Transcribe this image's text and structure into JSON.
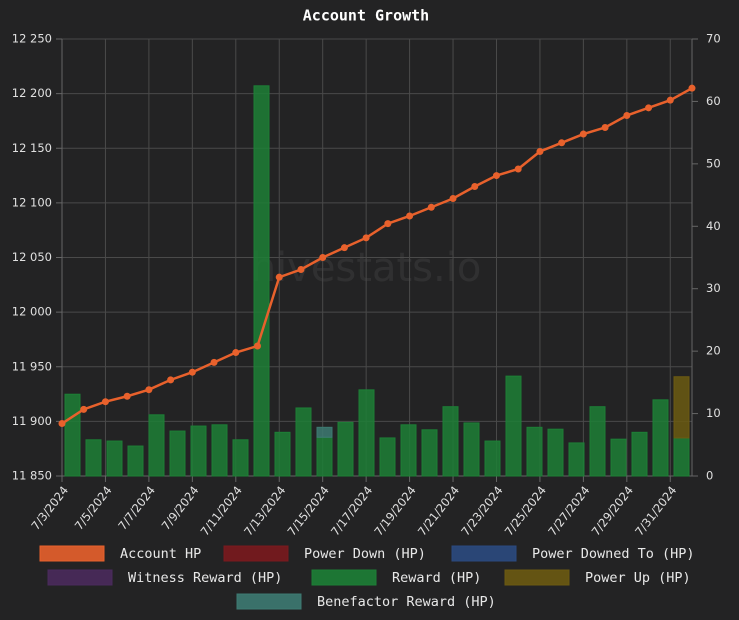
{
  "chart_data": {
    "type": "bar-line",
    "title": "Account Growth",
    "watermark": "hivestats.io",
    "categories": [
      "7/3/2024",
      null,
      "7/5/2024",
      null,
      "7/7/2024",
      null,
      "7/9/2024",
      null,
      "7/11/2024",
      null,
      "7/13/2024",
      null,
      "7/15/2024",
      null,
      "7/17/2024",
      null,
      "7/19/2024",
      null,
      "7/21/2024",
      null,
      "7/23/2024",
      null,
      "7/25/2024",
      null,
      "7/27/2024",
      null,
      "7/29/2024",
      null,
      "7/31/2024",
      null
    ],
    "stacked": true,
    "grid": true,
    "legend": "bottom",
    "ylim": [
      11850,
      12250
    ],
    "yticks": [
      {
        "value": 11850,
        "label": "11 850"
      },
      {
        "value": 11900,
        "label": "11 900"
      },
      {
        "value": 11950,
        "label": "11 950"
      },
      {
        "value": 12000,
        "label": "12 000"
      },
      {
        "value": 12050,
        "label": "12 050"
      },
      {
        "value": 12100,
        "label": "12 100"
      },
      {
        "value": 12150,
        "label": "12 150"
      },
      {
        "value": 12200,
        "label": "12 200"
      },
      {
        "value": 12250,
        "label": "12 250"
      }
    ],
    "y2lim": [
      0,
      70
    ],
    "y2ticks": [
      0,
      10,
      20,
      30,
      40,
      50,
      60,
      70
    ],
    "series": [
      {
        "name": "Account HP",
        "type": "line",
        "color": "#e8612c",
        "axis": "y",
        "values": [
          11898,
          11911,
          11918,
          11923,
          11929,
          11938,
          11945,
          11954,
          11963,
          11969,
          12032,
          12039,
          12050,
          12059,
          12068,
          12081,
          12088,
          12096,
          12104,
          12115,
          12125,
          12131,
          12147,
          12155,
          12163,
          12169,
          12180,
          12187,
          12194,
          12205
        ]
      },
      {
        "name": "Power Down (HP)",
        "type": "bar",
        "color": "#7a1a1e",
        "axis": "y2",
        "values": [
          0,
          0,
          0,
          0,
          0,
          0,
          0,
          0,
          0,
          0,
          0,
          0,
          0,
          0,
          0,
          0,
          0,
          0,
          0,
          0,
          0,
          0,
          0,
          0,
          0,
          0,
          0,
          0,
          0,
          0
        ]
      },
      {
        "name": "Power Downed To (HP)",
        "type": "bar",
        "color": "#2b4a80",
        "axis": "y2",
        "values": [
          0,
          0,
          0,
          0,
          0,
          0,
          0,
          0,
          0,
          0,
          0,
          0,
          0,
          0,
          0,
          0,
          0,
          0,
          0,
          0,
          0,
          0,
          0,
          0,
          0,
          0,
          0,
          0,
          0,
          0
        ]
      },
      {
        "name": "Witness Reward (HP)",
        "type": "bar",
        "color": "#4a2a5c",
        "axis": "y2",
        "values": [
          0,
          0,
          0,
          0,
          0,
          0,
          0,
          0,
          0,
          0,
          0,
          0,
          0,
          0,
          0,
          0,
          0,
          0,
          0,
          0,
          0,
          0,
          0,
          0,
          0,
          0,
          0,
          0,
          0,
          0
        ]
      },
      {
        "name": "Reward (HP)",
        "type": "bar",
        "color": "#1d7f36",
        "axis": "y2",
        "values": [
          13.1,
          5.8,
          5.6,
          4.8,
          9.8,
          7.2,
          8.0,
          8.2,
          5.8,
          62.5,
          7.0,
          10.9,
          6.2,
          8.6,
          13.8,
          6.1,
          8.2,
          7.4,
          11.1,
          8.5,
          5.6,
          16.0,
          7.8,
          7.5,
          5.3,
          11.1,
          5.9,
          7.0,
          12.2,
          6.1
        ]
      },
      {
        "name": "Power Up (HP)",
        "type": "bar",
        "color": "#6b5a12",
        "axis": "y2",
        "values": [
          0,
          0,
          0,
          0,
          0,
          0,
          0,
          0,
          0,
          0,
          0,
          0,
          0,
          0,
          0,
          0,
          0,
          0,
          0,
          0,
          0,
          0,
          0,
          0,
          0,
          0,
          0,
          0,
          0,
          9.8
        ]
      },
      {
        "name": "Benefactor Reward (HP)",
        "type": "bar",
        "color": "#3d7a72",
        "axis": "y2",
        "values": [
          0,
          0,
          0,
          0,
          0,
          0,
          0,
          0,
          0,
          0,
          0,
          0,
          1.6,
          0,
          0,
          0,
          0,
          0,
          0,
          0,
          0,
          0,
          0,
          0,
          0,
          0,
          0,
          0,
          0,
          0
        ]
      }
    ]
  }
}
